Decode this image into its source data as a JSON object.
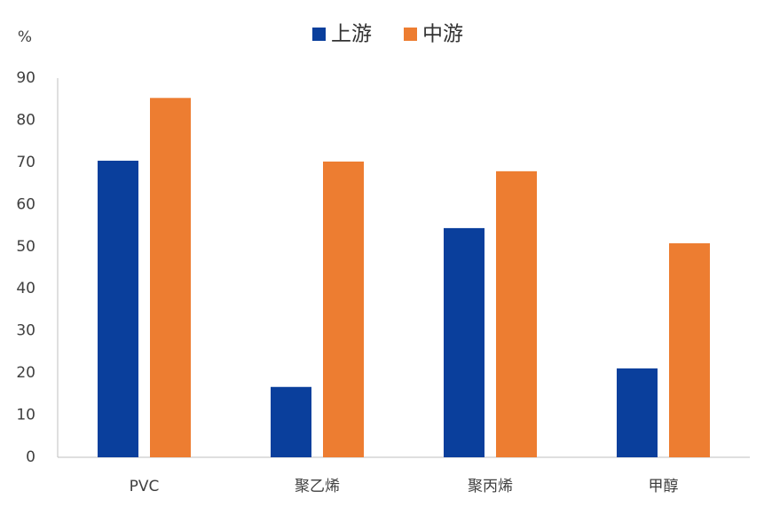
{
  "chart_data": {
    "type": "bar",
    "y_label": "%",
    "categories": [
      "PVC",
      "聚乙烯",
      "聚丙烯",
      "甲醇"
    ],
    "series": [
      {
        "name": "上游",
        "color": "#0a3f9c",
        "values": [
          70.4,
          16.7,
          54.4,
          21.1
        ]
      },
      {
        "name": "中游",
        "color": "#ed7d31",
        "values": [
          85.3,
          70.2,
          67.9,
          50.8
        ]
      }
    ],
    "ylim": [
      0,
      90
    ],
    "yticks": [
      0,
      10,
      20,
      30,
      40,
      50,
      60,
      70,
      80,
      90
    ],
    "grid": false,
    "legend": "top"
  }
}
